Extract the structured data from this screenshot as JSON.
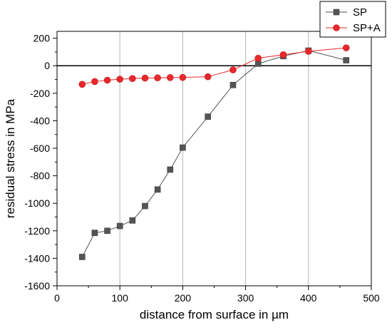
{
  "chart_data": {
    "type": "line",
    "title": "",
    "xlabel": "distance from surface in µm",
    "ylabel": "residual stress in MPa",
    "xlim": [
      0,
      500
    ],
    "ylim": [
      -1600,
      250
    ],
    "x_ticks": [
      0,
      100,
      200,
      300,
      400,
      500
    ],
    "y_ticks": [
      -1600,
      -1400,
      -1200,
      -1000,
      -800,
      -600,
      -400,
      -200,
      0,
      200
    ],
    "grid": true,
    "zero_line": true,
    "legend_position": "top-right",
    "series": [
      {
        "name": "SP",
        "color": "#555555",
        "marker": "square",
        "x": [
          40,
          60,
          80,
          100,
          120,
          140,
          160,
          180,
          200,
          240,
          280,
          320,
          360,
          400,
          460
        ],
        "y": [
          -1390,
          -1215,
          -1200,
          -1165,
          -1125,
          -1020,
          -900,
          -755,
          -595,
          -370,
          -140,
          15,
          70,
          110,
          40
        ]
      },
      {
        "name": "SP+A",
        "color": "#e8282b",
        "marker": "circle",
        "x": [
          40,
          60,
          80,
          100,
          120,
          140,
          160,
          180,
          200,
          240,
          280,
          320,
          360,
          400,
          460
        ],
        "y": [
          -135,
          -115,
          -105,
          -98,
          -93,
          -90,
          -88,
          -86,
          -85,
          -80,
          -30,
          55,
          80,
          105,
          130
        ]
      }
    ]
  }
}
